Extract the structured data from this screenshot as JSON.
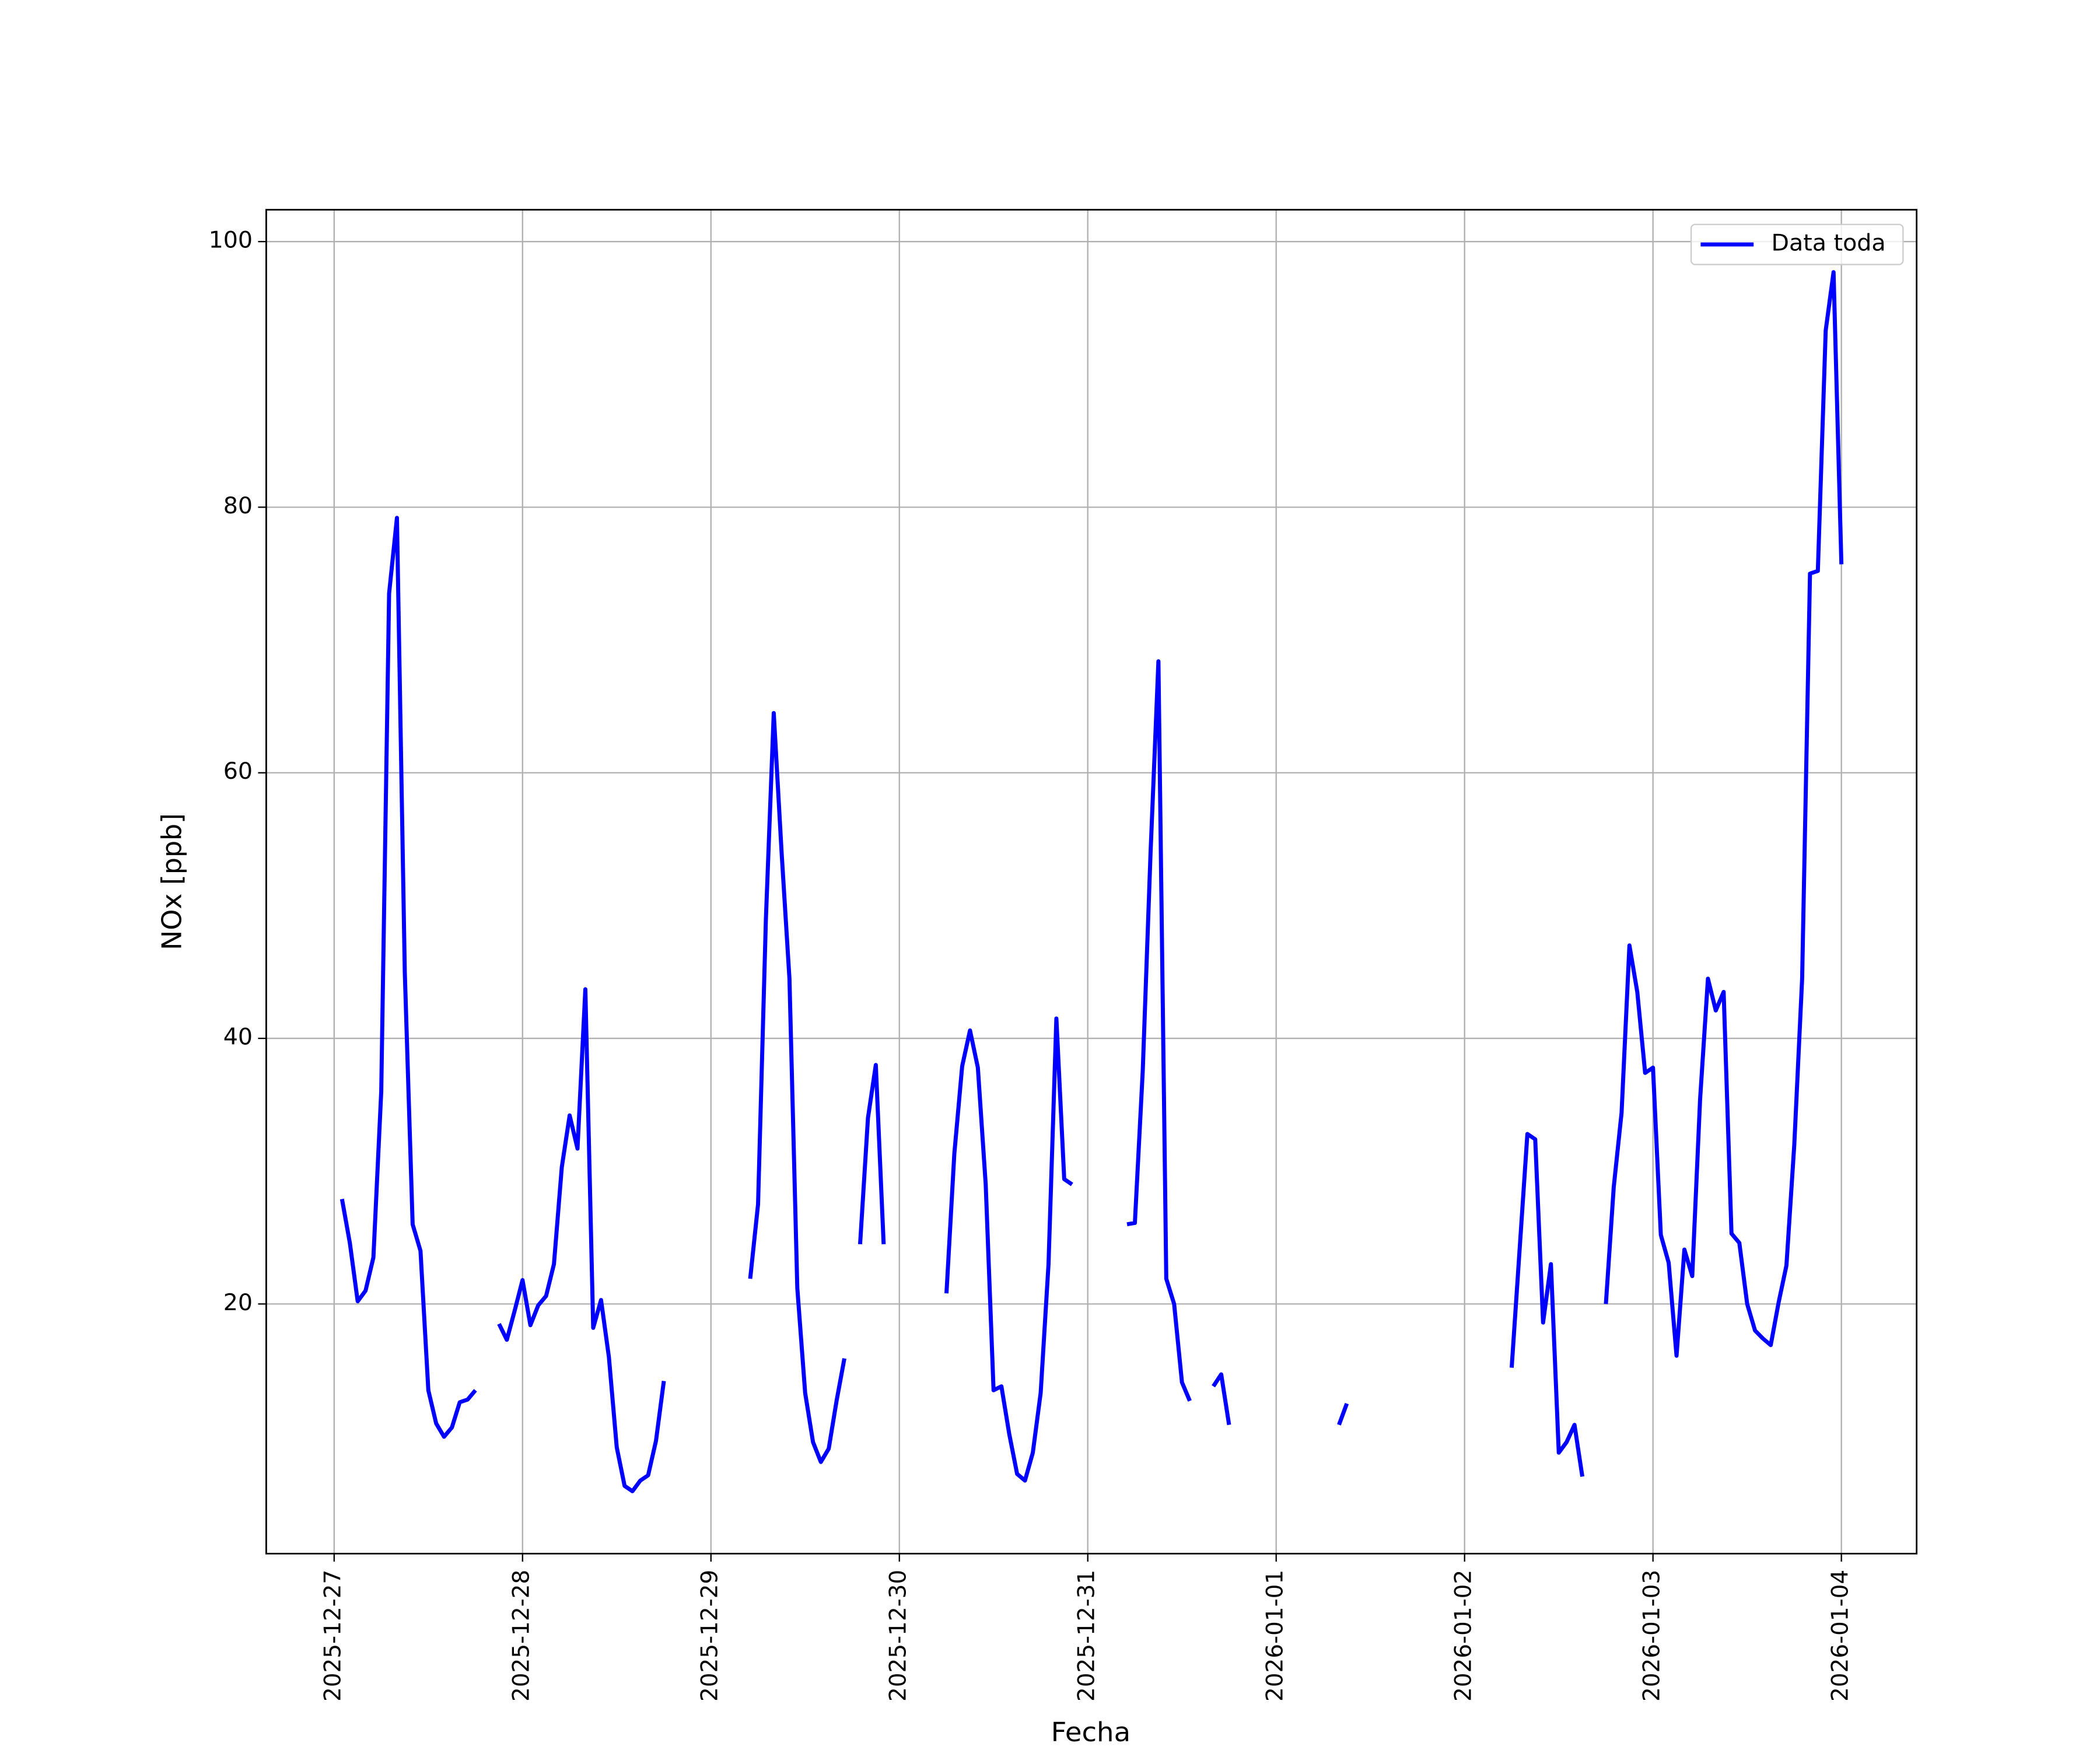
{
  "chart_data": {
    "type": "line",
    "xlabel": "Fecha",
    "ylabel": "NOx [ppb]",
    "x": [
      "2025-12-27 01:00",
      "2025-12-27 02:00",
      "2025-12-27 03:00",
      "2025-12-27 04:00",
      "2025-12-27 05:00",
      "2025-12-27 06:00",
      "2025-12-27 07:00",
      "2025-12-27 08:00",
      "2025-12-27 09:00",
      "2025-12-27 10:00",
      "2025-12-27 11:00",
      "2025-12-27 12:00",
      "2025-12-27 13:00",
      "2025-12-27 14:00",
      "2025-12-27 15:00",
      "2025-12-27 16:00",
      "2025-12-27 17:00",
      "2025-12-27 18:00",
      "2025-12-27 19:00",
      "2025-12-27 20:00",
      "2025-12-27 21:00",
      "2025-12-27 22:00",
      "2025-12-27 23:00",
      "2025-12-28 00:00",
      "2025-12-28 01:00",
      "2025-12-28 02:00",
      "2025-12-28 03:00",
      "2025-12-28 04:00",
      "2025-12-28 05:00",
      "2025-12-28 06:00",
      "2025-12-28 07:00",
      "2025-12-28 08:00",
      "2025-12-28 09:00",
      "2025-12-28 10:00",
      "2025-12-28 11:00",
      "2025-12-28 12:00",
      "2025-12-28 13:00",
      "2025-12-28 14:00",
      "2025-12-28 15:00",
      "2025-12-28 16:00",
      "2025-12-28 17:00",
      "2025-12-28 18:00",
      "2025-12-28 19:00",
      "2025-12-28 20:00",
      "2025-12-28 21:00",
      "2025-12-28 22:00",
      "2025-12-28 23:00",
      "2025-12-29 00:00",
      "2025-12-29 01:00",
      "2025-12-29 02:00",
      "2025-12-29 03:00",
      "2025-12-29 04:00",
      "2025-12-29 05:00",
      "2025-12-29 06:00",
      "2025-12-29 07:00",
      "2025-12-29 08:00",
      "2025-12-29 09:00",
      "2025-12-29 10:00",
      "2025-12-29 11:00",
      "2025-12-29 12:00",
      "2025-12-29 13:00",
      "2025-12-29 14:00",
      "2025-12-29 15:00",
      "2025-12-29 16:00",
      "2025-12-29 17:00",
      "2025-12-29 18:00",
      "2025-12-29 19:00",
      "2025-12-29 20:00",
      "2025-12-29 21:00",
      "2025-12-29 22:00",
      "2025-12-29 23:00",
      "2025-12-30 00:00",
      "2025-12-30 01:00",
      "2025-12-30 02:00",
      "2025-12-30 03:00",
      "2025-12-30 04:00",
      "2025-12-30 05:00",
      "2025-12-30 06:00",
      "2025-12-30 07:00",
      "2025-12-30 08:00",
      "2025-12-30 09:00",
      "2025-12-30 10:00",
      "2025-12-30 11:00",
      "2025-12-30 12:00",
      "2025-12-30 13:00",
      "2025-12-30 14:00",
      "2025-12-30 15:00",
      "2025-12-30 16:00",
      "2025-12-30 17:00",
      "2025-12-30 18:00",
      "2025-12-30 19:00",
      "2025-12-30 20:00",
      "2025-12-30 21:00",
      "2025-12-30 22:00",
      "2025-12-30 23:00",
      "2025-12-31 00:00",
      "2025-12-31 01:00",
      "2025-12-31 02:00",
      "2025-12-31 03:00",
      "2025-12-31 04:00",
      "2025-12-31 05:00",
      "2025-12-31 06:00",
      "2025-12-31 07:00",
      "2025-12-31 08:00",
      "2025-12-31 09:00",
      "2025-12-31 10:00",
      "2025-12-31 11:00",
      "2025-12-31 12:00",
      "2025-12-31 13:00",
      "2025-12-31 14:00",
      "2025-12-31 15:00",
      "2025-12-31 16:00",
      "2025-12-31 17:00",
      "2025-12-31 18:00",
      "2025-12-31 19:00",
      "2025-12-31 20:00",
      "2025-12-31 21:00",
      "2025-12-31 22:00",
      "2025-12-31 23:00",
      "2026-01-01 00:00",
      "2026-01-01 01:00",
      "2026-01-01 02:00",
      "2026-01-01 03:00",
      "2026-01-01 04:00",
      "2026-01-01 05:00",
      "2026-01-01 06:00",
      "2026-01-01 07:00",
      "2026-01-01 08:00",
      "2026-01-01 09:00",
      "2026-01-01 10:00",
      "2026-01-01 11:00",
      "2026-01-01 12:00",
      "2026-01-01 13:00",
      "2026-01-01 14:00",
      "2026-01-01 15:00",
      "2026-01-01 16:00",
      "2026-01-01 17:00",
      "2026-01-01 18:00",
      "2026-01-01 19:00",
      "2026-01-01 20:00",
      "2026-01-01 21:00",
      "2026-01-01 22:00",
      "2026-01-01 23:00",
      "2026-01-02 00:00",
      "2026-01-02 01:00",
      "2026-01-02 02:00",
      "2026-01-02 03:00",
      "2026-01-02 04:00",
      "2026-01-02 05:00",
      "2026-01-02 06:00",
      "2026-01-02 07:00",
      "2026-01-02 08:00",
      "2026-01-02 09:00",
      "2026-01-02 10:00",
      "2026-01-02 11:00",
      "2026-01-02 12:00",
      "2026-01-02 13:00",
      "2026-01-02 14:00",
      "2026-01-02 15:00",
      "2026-01-02 16:00",
      "2026-01-02 17:00",
      "2026-01-02 18:00",
      "2026-01-02 19:00",
      "2026-01-02 20:00",
      "2026-01-02 21:00",
      "2026-01-02 22:00",
      "2026-01-02 23:00",
      "2026-01-03 00:00",
      "2026-01-03 01:00",
      "2026-01-03 02:00",
      "2026-01-03 03:00",
      "2026-01-03 04:00",
      "2026-01-03 05:00",
      "2026-01-03 06:00",
      "2026-01-03 07:00",
      "2026-01-03 08:00",
      "2026-01-03 09:00",
      "2026-01-03 10:00",
      "2026-01-03 11:00",
      "2026-01-03 12:00",
      "2026-01-03 13:00",
      "2026-01-03 14:00",
      "2026-01-03 15:00",
      "2026-01-03 16:00",
      "2026-01-03 17:00",
      "2026-01-03 18:00",
      "2026-01-03 19:00",
      "2026-01-03 20:00",
      "2026-01-03 21:00",
      "2026-01-03 22:00",
      "2026-01-03 23:00",
      "2026-01-04 00:00"
    ],
    "series": [
      {
        "name": "Data toda",
        "color": "#0000ff",
        "values": [
          27.9,
          24.6,
          20.2,
          21.0,
          23.5,
          36,
          73.5,
          79.2,
          45,
          26,
          24,
          13.5,
          11,
          10,
          10.7,
          12.6,
          12.8,
          13.5,
          null,
          null,
          18.5,
          17.3,
          19.5,
          21.8,
          18.4,
          19.9,
          20.6,
          23,
          30.3,
          34.2,
          31.7,
          43.7,
          18.2,
          20.3,
          16,
          9.2,
          6.3,
          5.9,
          6.7,
          7.1,
          9.7,
          14.2,
          null,
          null,
          null,
          null,
          null,
          null,
          null,
          null,
          null,
          null,
          21.9,
          27.5,
          49,
          64.5,
          54,
          44.5,
          21.2,
          13.3,
          9.6,
          8.1,
          9.1,
          12.7,
          15.9,
          null,
          24.5,
          34,
          38,
          24.5,
          null,
          null,
          null,
          null,
          null,
          null,
          null,
          20.8,
          31.3,
          37.9,
          40.6,
          37.8,
          29,
          13.5,
          13.8,
          10.2,
          7.2,
          6.7,
          8.8,
          13.3,
          23,
          41.5,
          29.4,
          29,
          null,
          null,
          null,
          null,
          null,
          null,
          26,
          26.1,
          37.5,
          54,
          68.4,
          21.9,
          20,
          14.1,
          12.7,
          null,
          null,
          13.8,
          14.7,
          10.9,
          null,
          null,
          null,
          null,
          null,
          null,
          null,
          null,
          null,
          null,
          null,
          null,
          null,
          10.9,
          12.5,
          null,
          null,
          null,
          null,
          null,
          null,
          null,
          null,
          null,
          null,
          null,
          null,
          null,
          null,
          null,
          null,
          null,
          null,
          null,
          null,
          15.2,
          24,
          32.8,
          32.4,
          18.6,
          23,
          8.8,
          9.6,
          10.9,
          7,
          null,
          null,
          20,
          28.8,
          34.4,
          47,
          43.5,
          37.4,
          37.8,
          25.2,
          23.1,
          16.1,
          24.1,
          22.1,
          35.4,
          44.5,
          42.1,
          43.5,
          25.3,
          24.6,
          20,
          18,
          17.4,
          16.9,
          20.1,
          22.9,
          32,
          44.5,
          75,
          75.2,
          93.3,
          97.7,
          75.7
        ]
      }
    ],
    "xlim": [
      "2025-12-26 15:21",
      "2026-01-04 09:35"
    ],
    "xticks": [
      {
        "value": "2025-12-27 00:00",
        "label": "2025-12-27"
      },
      {
        "value": "2025-12-28 00:00",
        "label": "2025-12-28"
      },
      {
        "value": "2025-12-29 00:00",
        "label": "2025-12-29"
      },
      {
        "value": "2025-12-30 00:00",
        "label": "2025-12-30"
      },
      {
        "value": "2025-12-31 00:00",
        "label": "2025-12-31"
      },
      {
        "value": "2026-01-01 00:00",
        "label": "2026-01-01"
      },
      {
        "value": "2026-01-02 00:00",
        "label": "2026-01-02"
      },
      {
        "value": "2026-01-03 00:00",
        "label": "2026-01-03"
      },
      {
        "value": "2026-01-04 00:00",
        "label": "2026-01-04"
      }
    ],
    "ylim": [
      1.2,
      102.4
    ],
    "yticks": [
      20,
      40,
      60,
      80,
      100
    ],
    "grid": true,
    "legend": "upper right"
  }
}
